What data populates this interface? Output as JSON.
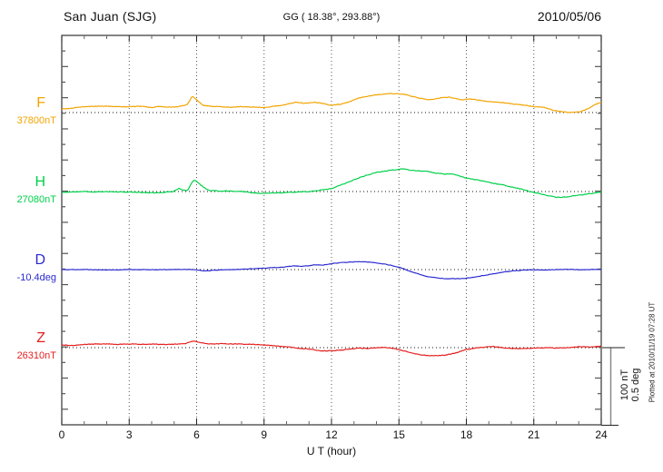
{
  "header": {
    "station": "San Juan (SJG)",
    "coords": "GG ( 18.38°, 293.88°)",
    "date": "2010/05/06"
  },
  "footer_note": "Plotted at 2010/11/19 07:28 UT",
  "chart_data": {
    "type": "line",
    "title": "San Juan (SJG) magnetogram 2010/05/06",
    "xlabel": "U T (hour)",
    "xlim": [
      0,
      24
    ],
    "x_ticks": [
      0,
      3,
      6,
      9,
      12,
      15,
      18,
      21,
      24
    ],
    "grid": "vertical dotted at 3-hour intervals, dotted horizontal baseline per channel",
    "legend_position": "left channel labels",
    "scale_bar": {
      "nT_label": "100 nT",
      "deg_label": "0.5 deg"
    },
    "series": [
      {
        "name": "F",
        "label": "F",
        "baseline_label": "37800nT",
        "unit": "nT",
        "baseline_value": 37800,
        "color": "#f2a300",
        "points": [
          [
            0,
            4.7
          ],
          [
            0.5,
            5.9
          ],
          [
            1,
            7.6
          ],
          [
            1.5,
            8.2
          ],
          [
            2,
            8.2
          ],
          [
            2.5,
            7.6
          ],
          [
            3,
            7.6
          ],
          [
            3.5,
            8.2
          ],
          [
            4,
            6.5
          ],
          [
            4.3,
            8.2
          ],
          [
            4.6,
            7.1
          ],
          [
            5,
            7.1
          ],
          [
            5.3,
            8.2
          ],
          [
            5.6,
            10.6
          ],
          [
            5.8,
            21.2
          ],
          [
            6,
            16.5
          ],
          [
            6.1,
            14.1
          ],
          [
            6.3,
            9.4
          ],
          [
            6.6,
            8.2
          ],
          [
            7,
            7.6
          ],
          [
            7.5,
            7.1
          ],
          [
            8,
            7.6
          ],
          [
            8.5,
            7.1
          ],
          [
            9,
            6.5
          ],
          [
            9.5,
            8.2
          ],
          [
            10,
            10.6
          ],
          [
            10.4,
            13.5
          ],
          [
            10.8,
            11.8
          ],
          [
            11.2,
            13.5
          ],
          [
            11.6,
            11.8
          ],
          [
            12,
            9.4
          ],
          [
            12.4,
            10.6
          ],
          [
            12.8,
            14.1
          ],
          [
            13.2,
            18.8
          ],
          [
            13.6,
            21.2
          ],
          [
            14,
            22.9
          ],
          [
            14.5,
            24.7
          ],
          [
            15,
            24.1
          ],
          [
            15.3,
            23.5
          ],
          [
            15.7,
            20
          ],
          [
            16,
            18.2
          ],
          [
            16.4,
            16.5
          ],
          [
            16.8,
            18.8
          ],
          [
            17.2,
            20
          ],
          [
            17.5,
            18.2
          ],
          [
            17.8,
            16.5
          ],
          [
            18.2,
            17.6
          ],
          [
            18.6,
            15.9
          ],
          [
            19,
            14.1
          ],
          [
            19.4,
            13.5
          ],
          [
            19.8,
            12.4
          ],
          [
            20.2,
            10.6
          ],
          [
            20.6,
            9.4
          ],
          [
            21,
            7.6
          ],
          [
            21.4,
            7.1
          ],
          [
            21.8,
            3.5
          ],
          [
            22.2,
            1.2
          ],
          [
            22.6,
            0
          ],
          [
            23,
            0.6
          ],
          [
            23.3,
            3.5
          ],
          [
            23.6,
            8.2
          ],
          [
            23.8,
            11.2
          ],
          [
            24,
            12.9
          ]
        ]
      },
      {
        "name": "H",
        "label": "H",
        "baseline_label": "27080nT",
        "unit": "nT",
        "baseline_value": 27080,
        "color": "#00d04a",
        "points": [
          [
            0,
            -1.2
          ],
          [
            0.5,
            -0.6
          ],
          [
            1,
            0
          ],
          [
            1.5,
            -0.6
          ],
          [
            2,
            0
          ],
          [
            2.5,
            -0.6
          ],
          [
            3,
            -0.6
          ],
          [
            3.5,
            -1.2
          ],
          [
            4,
            -1.8
          ],
          [
            4.5,
            -1.2
          ],
          [
            5,
            0
          ],
          [
            5.2,
            4.1
          ],
          [
            5.4,
            1.8
          ],
          [
            5.6,
            1.2
          ],
          [
            5.85,
            14.7
          ],
          [
            6,
            12.9
          ],
          [
            6.2,
            8.2
          ],
          [
            6.4,
            3.5
          ],
          [
            6.6,
            1.2
          ],
          [
            7,
            0.6
          ],
          [
            7.5,
            0.6
          ],
          [
            8,
            0
          ],
          [
            8.5,
            -1.8
          ],
          [
            9,
            -2.4
          ],
          [
            9.5,
            -1.8
          ],
          [
            10,
            -1.2
          ],
          [
            10.5,
            -0.6
          ],
          [
            11,
            0
          ],
          [
            11.5,
            1.8
          ],
          [
            12,
            3.5
          ],
          [
            12.5,
            9.4
          ],
          [
            13,
            15.3
          ],
          [
            13.5,
            20.6
          ],
          [
            14,
            24.7
          ],
          [
            14.5,
            27.1
          ],
          [
            15,
            28.8
          ],
          [
            15.2,
            29.4
          ],
          [
            15.5,
            27.6
          ],
          [
            16,
            26.5
          ],
          [
            16.3,
            25.9
          ],
          [
            16.6,
            24.1
          ],
          [
            17,
            22.4
          ],
          [
            17.3,
            22.9
          ],
          [
            17.6,
            21.2
          ],
          [
            18,
            17.1
          ],
          [
            18.4,
            15.3
          ],
          [
            18.8,
            13.5
          ],
          [
            19.2,
            10.6
          ],
          [
            19.6,
            8.8
          ],
          [
            20,
            5.9
          ],
          [
            20.4,
            3.5
          ],
          [
            20.8,
            0
          ],
          [
            21.2,
            -2.4
          ],
          [
            21.6,
            -5.3
          ],
          [
            22,
            -7.6
          ],
          [
            22.4,
            -7.1
          ],
          [
            22.8,
            -5.3
          ],
          [
            23.2,
            -4.1
          ],
          [
            23.6,
            -2.4
          ],
          [
            24,
            -0.6
          ]
        ]
      },
      {
        "name": "D",
        "label": "D",
        "baseline_label": "-10.4deg",
        "unit": "deg",
        "baseline_value": -10.4,
        "color": "#2a2ad0",
        "points": [
          [
            0,
            0
          ],
          [
            1,
            0
          ],
          [
            2,
            -0.002
          ],
          [
            3,
            0
          ],
          [
            4,
            -0.001
          ],
          [
            5,
            0
          ],
          [
            5.5,
            0.001
          ],
          [
            6,
            -0.001
          ],
          [
            6.3,
            -0.008
          ],
          [
            6.6,
            -0.006
          ],
          [
            7,
            -0.002
          ],
          [
            7.5,
            0
          ],
          [
            8,
            0.003
          ],
          [
            8.5,
            0.006
          ],
          [
            9,
            0.009
          ],
          [
            9.5,
            0.013
          ],
          [
            10,
            0.018
          ],
          [
            10.3,
            0.025
          ],
          [
            10.6,
            0.021
          ],
          [
            11,
            0.025
          ],
          [
            11.3,
            0.032
          ],
          [
            11.6,
            0.028
          ],
          [
            12,
            0.038
          ],
          [
            12.3,
            0.044
          ],
          [
            12.6,
            0.047
          ],
          [
            13,
            0.05
          ],
          [
            13.4,
            0.051
          ],
          [
            13.8,
            0.047
          ],
          [
            14.2,
            0.039
          ],
          [
            14.6,
            0.029
          ],
          [
            15,
            0.015
          ],
          [
            15.2,
            0.006
          ],
          [
            15.5,
            -0.012
          ],
          [
            16,
            -0.035
          ],
          [
            16.4,
            -0.049
          ],
          [
            16.8,
            -0.056
          ],
          [
            17.2,
            -0.059
          ],
          [
            17.6,
            -0.059
          ],
          [
            18,
            -0.056
          ],
          [
            18.4,
            -0.047
          ],
          [
            18.8,
            -0.038
          ],
          [
            19.2,
            -0.028
          ],
          [
            19.6,
            -0.018
          ],
          [
            20,
            -0.009
          ],
          [
            20.4,
            -0.005
          ],
          [
            20.8,
            -0.002
          ],
          [
            21.2,
            -0.001
          ],
          [
            21.6,
            -0.002
          ],
          [
            22,
            0
          ],
          [
            22.4,
            0.001
          ],
          [
            22.8,
            0
          ],
          [
            23.2,
            -0.001
          ],
          [
            23.6,
            0
          ],
          [
            24,
            0
          ]
        ]
      },
      {
        "name": "Z",
        "label": "Z",
        "baseline_label": "26310nT",
        "unit": "nT",
        "baseline_value": 26310,
        "color": "#e61e1e",
        "points": [
          [
            0,
            3.5
          ],
          [
            0.5,
            2.9
          ],
          [
            1,
            4.1
          ],
          [
            1.5,
            4.7
          ],
          [
            2,
            4.7
          ],
          [
            2.5,
            4.4
          ],
          [
            3,
            4.7
          ],
          [
            3.5,
            4.4
          ],
          [
            4,
            4.7
          ],
          [
            4.5,
            4.1
          ],
          [
            5,
            4.4
          ],
          [
            5.5,
            5.3
          ],
          [
            5.9,
            8.8
          ],
          [
            6.1,
            7.1
          ],
          [
            6.4,
            5.3
          ],
          [
            6.8,
            4.7
          ],
          [
            7.2,
            5.3
          ],
          [
            7.6,
            4.7
          ],
          [
            8,
            4.7
          ],
          [
            8.5,
            4.1
          ],
          [
            9,
            3.5
          ],
          [
            9.5,
            2.4
          ],
          [
            10,
            1.2
          ],
          [
            10.5,
            -0.6
          ],
          [
            11,
            -1.8
          ],
          [
            11.5,
            -4.1
          ],
          [
            12,
            -4.1
          ],
          [
            12.5,
            -2.9
          ],
          [
            13,
            -1.2
          ],
          [
            13.3,
            -0.6
          ],
          [
            13.6,
            -1.2
          ],
          [
            14,
            0
          ],
          [
            14.4,
            0.2
          ],
          [
            14.8,
            -1.2
          ],
          [
            15.2,
            -4.1
          ],
          [
            15.6,
            -7.1
          ],
          [
            16,
            -9.4
          ],
          [
            16.5,
            -10.6
          ],
          [
            17,
            -10
          ],
          [
            17.5,
            -7.1
          ],
          [
            18,
            -2.4
          ],
          [
            18.4,
            -0.6
          ],
          [
            18.8,
            0.6
          ],
          [
            19.2,
            1.4
          ],
          [
            19.6,
            0
          ],
          [
            20,
            -1.2
          ],
          [
            20.5,
            -1.2
          ],
          [
            21,
            -0.6
          ],
          [
            21.5,
            0
          ],
          [
            22,
            -0.6
          ],
          [
            22.5,
            0
          ],
          [
            23,
            1.2
          ],
          [
            23.5,
            0.8
          ],
          [
            24,
            1.8
          ]
        ]
      }
    ]
  }
}
